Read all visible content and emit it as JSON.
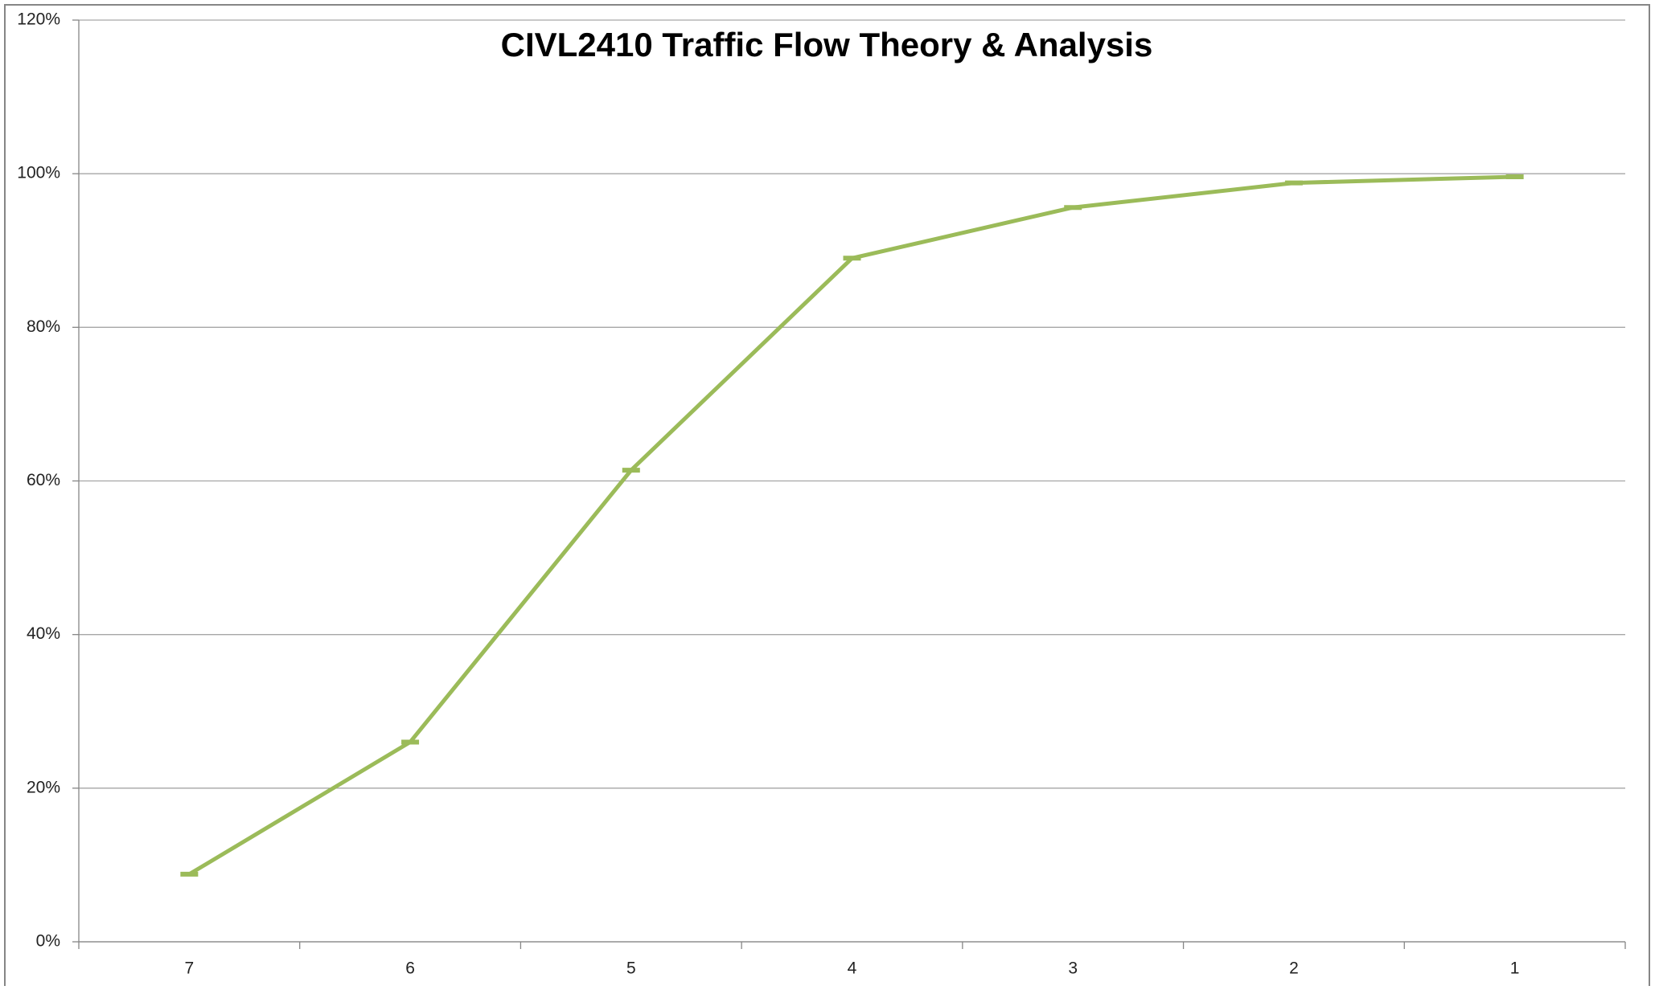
{
  "chart_data": {
    "type": "line",
    "title": "CIVL2410 Traffic Flow Theory & Analysis",
    "categories": [
      "7",
      "6",
      "5",
      "4",
      "3",
      "2",
      "1"
    ],
    "values": [
      8.8,
      26,
      61.4,
      89,
      95.6,
      98.8,
      99.6
    ],
    "color": "#9bbb59",
    "ylim": [
      0,
      120
    ],
    "yticks": [
      {
        "value": 0,
        "label": "0%"
      },
      {
        "value": 20,
        "label": "20%"
      },
      {
        "value": 40,
        "label": "40%"
      },
      {
        "value": 60,
        "label": "60%"
      },
      {
        "value": 80,
        "label": "80%"
      },
      {
        "value": 100,
        "label": "100%"
      },
      {
        "value": 120,
        "label": "120%"
      }
    ],
    "grid": true
  }
}
